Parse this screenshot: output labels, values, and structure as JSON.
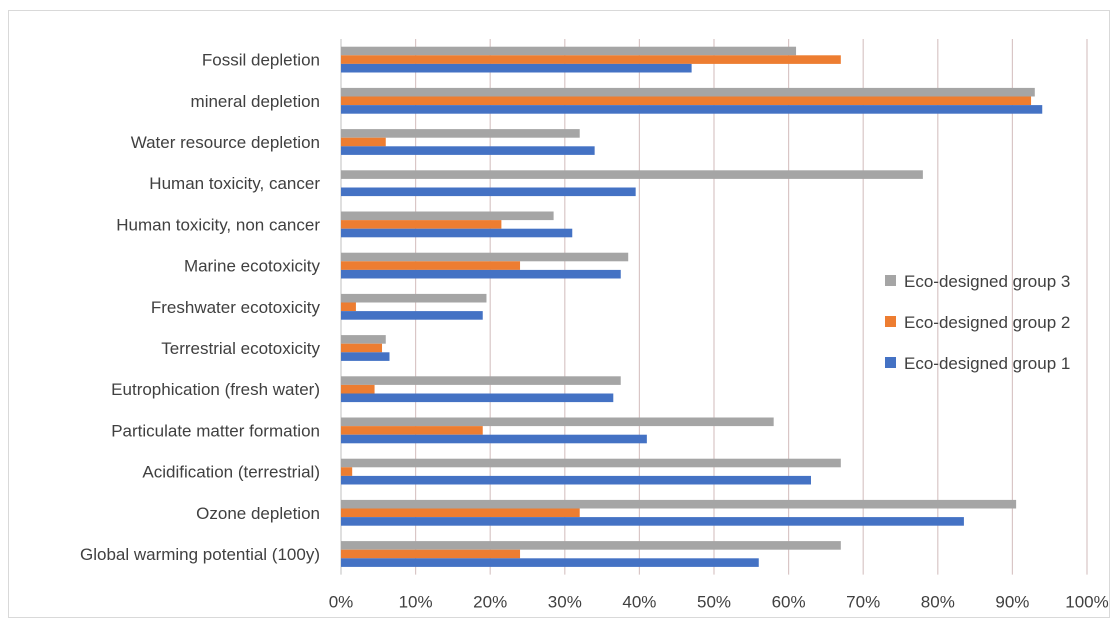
{
  "chart_data": {
    "type": "bar",
    "orientation": "horizontal",
    "title": "",
    "xlabel": "",
    "ylabel": "",
    "xlim": [
      0,
      100
    ],
    "x_ticks": [
      "0%",
      "10%",
      "20%",
      "30%",
      "40%",
      "50%",
      "60%",
      "70%",
      "80%",
      "90%",
      "100%"
    ],
    "grid": "vertical",
    "legend_position": "right",
    "categories": [
      "Fossil depletion",
      "mineral depletion",
      "Water resource depletion",
      "Human toxicity, cancer",
      "Human toxicity, non cancer",
      "Marine ecotoxicity",
      "Freshwater ecotoxicity",
      "Terrestrial ecotoxicity",
      "Eutrophication (fresh water)",
      "Particulate matter formation",
      "Acidification (terrestrial)",
      "Ozone depletion",
      "Global warming potential (100y)"
    ],
    "series": [
      {
        "name": "Eco-designed group 3",
        "color": "#a5a5a5",
        "values": [
          61,
          93,
          32,
          78,
          28.5,
          38.5,
          19.5,
          6,
          37.5,
          58,
          67,
          90.5,
          67
        ]
      },
      {
        "name": "Eco-designed group 2",
        "color": "#ed7d31",
        "values": [
          67,
          92.5,
          6,
          0,
          21.5,
          24,
          2,
          5.5,
          4.5,
          19,
          1.5,
          32,
          24
        ]
      },
      {
        "name": "Eco-designed group 1",
        "color": "#4472c4",
        "values": [
          47,
          94,
          34,
          39.5,
          31,
          37.5,
          19,
          6.5,
          36.5,
          41,
          63,
          83.5,
          56
        ]
      }
    ]
  }
}
